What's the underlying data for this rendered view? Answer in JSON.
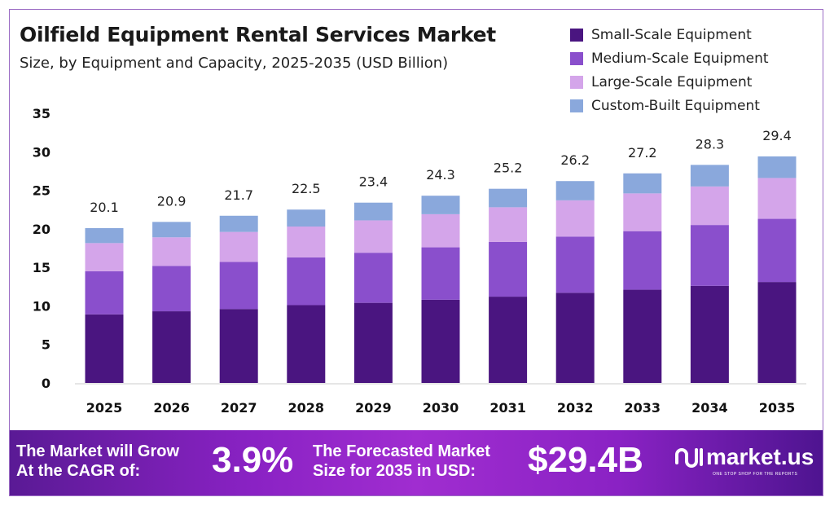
{
  "header": {
    "title": "Oilfield Equipment Rental Services Market",
    "subtitle": "Size, by Equipment and Capacity, 2025-2035 (USD Billion)"
  },
  "chart_data": {
    "type": "bar",
    "stacked": true,
    "title": "Oilfield Equipment Rental Services Market",
    "subtitle": "Size, by Equipment and Capacity, 2025-2035 (USD Billion)",
    "categories": [
      "2025",
      "2026",
      "2027",
      "2028",
      "2029",
      "2030",
      "2031",
      "2032",
      "2033",
      "2034",
      "2035"
    ],
    "series": [
      {
        "name": "Small-Scale Equipment",
        "color": "#4a1580",
        "values": [
          8.9,
          9.3,
          9.6,
          10.1,
          10.4,
          10.8,
          11.2,
          11.7,
          12.1,
          12.6,
          13.1
        ]
      },
      {
        "name": "Medium-Scale Equipment",
        "color": "#8a4fcc",
        "values": [
          5.6,
          5.9,
          6.1,
          6.2,
          6.5,
          6.8,
          7.1,
          7.3,
          7.6,
          7.9,
          8.2
        ]
      },
      {
        "name": "Large-Scale Equipment",
        "color": "#d4a5ea",
        "values": [
          3.65,
          3.7,
          3.9,
          4.0,
          4.2,
          4.3,
          4.5,
          4.7,
          4.9,
          5.0,
          5.3
        ]
      },
      {
        "name": "Custom-Built Equipment",
        "color": "#8aa8dc",
        "values": [
          1.95,
          2.0,
          2.1,
          2.2,
          2.3,
          2.4,
          2.4,
          2.5,
          2.6,
          2.8,
          2.8
        ]
      }
    ],
    "totals": [
      "20.1",
      "20.9",
      "21.7",
      "22.5",
      "23.4",
      "24.3",
      "25.2",
      "26.2",
      "27.2",
      "28.3",
      "29.4"
    ],
    "yticks": [
      "0",
      "5",
      "10",
      "15",
      "20",
      "25",
      "30",
      "35"
    ],
    "ylim": [
      0,
      35
    ],
    "grid": false,
    "legend": "top-right"
  },
  "banner": {
    "cagr_label": [
      "The Market will Grow",
      "At the CAGR of:"
    ],
    "cagr_value": "3.9%",
    "forecast_label": [
      "The Forecasted Market",
      "Size for 2035 in USD:"
    ],
    "forecast_value": "$29.4B",
    "logo_name": "market.us",
    "logo_tagline": "ONE STOP SHOP FOR THE REPORTS"
  }
}
